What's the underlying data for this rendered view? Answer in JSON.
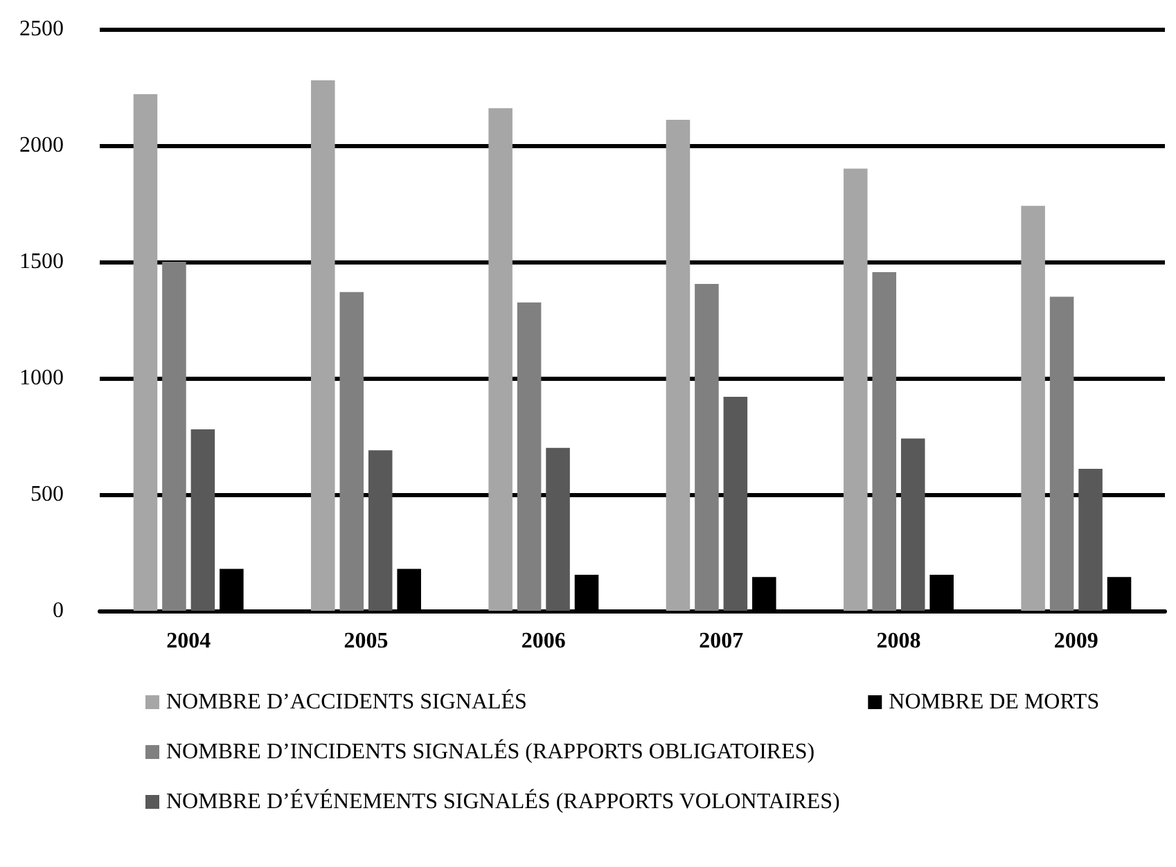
{
  "chart_data": {
    "type": "bar",
    "categories": [
      "2004",
      "2005",
      "2006",
      "2007",
      "2008",
      "2009"
    ],
    "series": [
      {
        "name": "NOMBRE D’ACCIDENTS SIGNALÉS",
        "color": "#a6a6a6",
        "values": [
          2220,
          2280,
          2160,
          2110,
          1900,
          1740
        ]
      },
      {
        "name": "NOMBRE D’INCIDENTS SIGNALÉS (RAPPORTS OBLIGATOIRES)",
        "color": "#808080",
        "values": [
          1500,
          1370,
          1325,
          1405,
          1455,
          1350
        ]
      },
      {
        "name": "NOMBRE D’ÉVÉNEMENTS SIGNALÉS (RAPPORTS VOLONTAIRES)",
        "color": "#595959",
        "values": [
          780,
          690,
          700,
          920,
          740,
          610
        ]
      },
      {
        "name": "NOMBRE DE MORTS",
        "color": "#000000",
        "values": [
          180,
          180,
          155,
          145,
          155,
          145
        ]
      }
    ],
    "ylim": [
      0,
      2500
    ],
    "yticks": [
      0,
      500,
      1000,
      1500,
      2000,
      2500
    ],
    "grid": "y",
    "legend": "bottom"
  }
}
